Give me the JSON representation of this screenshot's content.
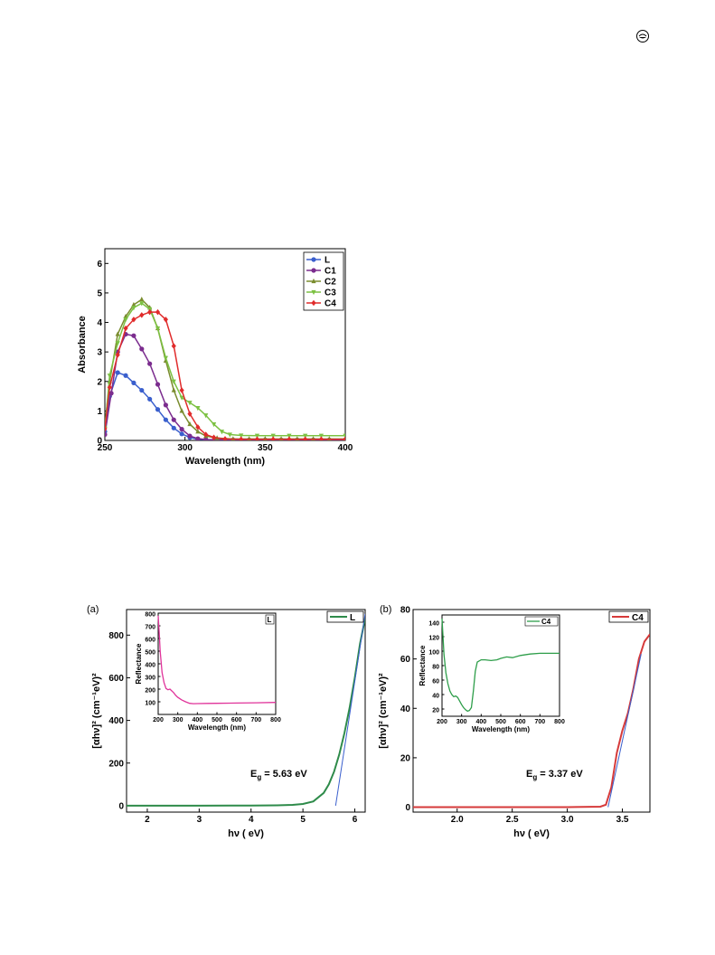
{
  "logo": {
    "icon": "publisher-logo-icon"
  },
  "chart_data": [
    {
      "id": "absorbance",
      "type": "line",
      "xlabel": "Wavelength (nm)",
      "ylabel": "Absorbance",
      "xlim": [
        250,
        400
      ],
      "ylim": [
        0,
        6.5
      ],
      "xticks": [
        250,
        300,
        350,
        400
      ],
      "yticks": [
        0,
        1,
        2,
        3,
        4,
        5,
        6
      ],
      "legend_position": "top-right",
      "series": [
        {
          "name": "L",
          "color": "#3a5fcd",
          "marker": "circle",
          "x": [
            250,
            253,
            258,
            263,
            268,
            273,
            278,
            283,
            288,
            293,
            298,
            303,
            308,
            313,
            320,
            330,
            340,
            350,
            360,
            370,
            380,
            390,
            400
          ],
          "y": [
            0.3,
            1.5,
            2.3,
            2.2,
            1.95,
            1.7,
            1.4,
            1.05,
            0.7,
            0.42,
            0.22,
            0.1,
            0.04,
            0.02,
            0.01,
            0.01,
            0.01,
            0.01,
            0.01,
            0.01,
            0.01,
            0.01,
            0.01
          ]
        },
        {
          "name": "C1",
          "color": "#7b2c8e",
          "marker": "circle",
          "x": [
            250,
            254,
            258,
            263,
            268,
            273,
            278,
            283,
            288,
            293,
            298,
            303,
            308,
            313,
            320,
            330,
            340,
            350,
            360,
            370,
            380,
            390,
            400
          ],
          "y": [
            0.2,
            1.6,
            3.0,
            3.6,
            3.55,
            3.1,
            2.6,
            1.9,
            1.2,
            0.7,
            0.38,
            0.15,
            0.06,
            0.03,
            0.02,
            0.02,
            0.02,
            0.02,
            0.02,
            0.02,
            0.02,
            0.02,
            0.02
          ]
        },
        {
          "name": "C2",
          "color": "#7a8c2e",
          "marker": "triangle-up",
          "x": [
            250,
            253,
            258,
            263,
            268,
            273,
            278,
            283,
            288,
            293,
            298,
            303,
            308,
            313,
            320,
            330,
            340,
            350,
            360,
            370,
            380,
            390,
            400
          ],
          "y": [
            0.5,
            2.0,
            3.6,
            4.2,
            4.6,
            4.78,
            4.5,
            3.8,
            2.7,
            1.7,
            1.0,
            0.55,
            0.3,
            0.15,
            0.08,
            0.05,
            0.05,
            0.05,
            0.05,
            0.05,
            0.05,
            0.05,
            0.05
          ]
        },
        {
          "name": "C3",
          "color": "#7cc142",
          "marker": "triangle-down",
          "x": [
            250,
            253,
            258,
            263,
            268,
            273,
            278,
            283,
            288,
            293,
            298,
            303,
            308,
            313,
            318,
            323,
            328,
            335,
            345,
            355,
            365,
            375,
            385,
            400
          ],
          "y": [
            0.4,
            2.2,
            3.3,
            4.1,
            4.5,
            4.65,
            4.45,
            3.8,
            2.8,
            2.0,
            1.45,
            1.28,
            1.1,
            0.85,
            0.55,
            0.3,
            0.2,
            0.17,
            0.16,
            0.16,
            0.16,
            0.16,
            0.16,
            0.16
          ]
        },
        {
          "name": "C4",
          "color": "#e02b2b",
          "marker": "diamond",
          "x": [
            250,
            253,
            258,
            263,
            268,
            273,
            278,
            283,
            288,
            293,
            298,
            303,
            308,
            313,
            318,
            325,
            335,
            345,
            355,
            365,
            375,
            385,
            400
          ],
          "y": [
            0.4,
            1.8,
            2.9,
            3.8,
            4.1,
            4.25,
            4.35,
            4.35,
            4.1,
            3.2,
            1.7,
            0.9,
            0.45,
            0.2,
            0.1,
            0.05,
            0.04,
            0.04,
            0.04,
            0.04,
            0.04,
            0.04,
            0.04
          ]
        }
      ]
    },
    {
      "id": "tauc-L",
      "panel_label": "(a)",
      "type": "line",
      "xlabel": "hν ( eV)",
      "ylabel": "[αhν]² (cm⁻¹eV)²",
      "xlim": [
        1.6,
        6.2
      ],
      "ylim": [
        -30,
        920
      ],
      "xticks": [
        2,
        3,
        4,
        5,
        6
      ],
      "yticks": [
        0,
        200,
        400,
        600,
        800
      ],
      "legend_position": "top-right",
      "annotation": {
        "text": "Eg = 5.63 eV",
        "main": "E",
        "sub": "g",
        "rest": " = 5.63 eV"
      },
      "series": [
        {
          "name": "L",
          "color": "#2e8b4a",
          "x": [
            1.6,
            3.0,
            4.0,
            4.5,
            4.8,
            5.0,
            5.2,
            5.4,
            5.5,
            5.6,
            5.7,
            5.8,
            5.9,
            6.0,
            6.1,
            6.2
          ],
          "y": [
            0,
            0,
            1,
            2,
            4,
            8,
            20,
            60,
            100,
            160,
            240,
            340,
            460,
            600,
            760,
            880
          ]
        },
        {
          "name": "fit",
          "color": "#3a5fcd",
          "x": [
            5.63,
            6.2
          ],
          "y": [
            0,
            900
          ]
        }
      ],
      "inset": {
        "legend": "L",
        "xlabel": "Wavelength (nm)",
        "ylabel": "Reflectance",
        "xlim": [
          200,
          800
        ],
        "ylim": [
          0,
          800
        ],
        "xticks": [
          200,
          300,
          400,
          500,
          600,
          700,
          800
        ],
        "yticks": [
          100,
          200,
          300,
          400,
          500,
          600,
          700,
          800
        ],
        "series": [
          {
            "name": "reflectance",
            "color": "#e0339a",
            "x": [
              200,
              205,
              210,
              220,
              230,
              240,
              250,
              260,
              270,
              280,
              290,
              300,
              320,
              340,
              360,
              380,
              400,
              450,
              500,
              600,
              700,
              800
            ],
            "y": [
              780,
              650,
              500,
              330,
              250,
              205,
              195,
              200,
              185,
              170,
              150,
              135,
              115,
              100,
              88,
              85,
              86,
              87,
              88,
              90,
              92,
              95
            ]
          }
        ]
      }
    },
    {
      "id": "tauc-C4",
      "panel_label": "(b)",
      "type": "line",
      "xlabel": "hν ( eV)",
      "ylabel": "[αhν]² (cm⁻¹eV)²",
      "xlim": [
        1.6,
        3.75
      ],
      "ylim": [
        -2,
        80
      ],
      "xticks": [
        2.0,
        2.5,
        3.0,
        3.5
      ],
      "yticks": [
        0,
        20,
        40,
        60,
        80
      ],
      "legend_position": "top-right",
      "annotation": {
        "text": "Eg = 3.37 eV",
        "main": "E",
        "sub": "g",
        "rest": " = 3.37 eV"
      },
      "series": [
        {
          "name": "C4",
          "color": "#d63a3a",
          "x": [
            1.6,
            2.5,
            3.0,
            3.3,
            3.35,
            3.4,
            3.45,
            3.5,
            3.55,
            3.6,
            3.65,
            3.7,
            3.75
          ],
          "y": [
            0,
            0,
            0,
            0.2,
            1,
            8,
            22,
            31,
            38,
            48,
            60,
            67,
            70
          ]
        },
        {
          "name": "fit",
          "color": "#3a5fcd",
          "x": [
            3.37,
            3.67
          ],
          "y": [
            0,
            62
          ]
        }
      ],
      "inset": {
        "legend": "C4",
        "xlabel": "Wavelength (nm)",
        "ylabel": "Reflectance",
        "xlim": [
          200,
          800
        ],
        "ylim": [
          10,
          150
        ],
        "xticks": [
          200,
          300,
          400,
          500,
          600,
          700,
          800
        ],
        "yticks": [
          20,
          40,
          60,
          80,
          100,
          120,
          140
        ],
        "series": [
          {
            "name": "C4",
            "color": "#2e9e4a",
            "x": [
              200,
              205,
              210,
              220,
              230,
              240,
              250,
              260,
              270,
              280,
              290,
              300,
              310,
              320,
              330,
              340,
              350,
              360,
              370,
              380,
              400,
              420,
              450,
              480,
              500,
              530,
              560,
              600,
              650,
              700,
              750,
              800
            ],
            "y": [
              145,
              120,
              95,
              70,
              55,
              45,
              40,
              37,
              38,
              36,
              31,
              26,
              22,
              19,
              17,
              18,
              22,
              45,
              72,
              85,
              88,
              88,
              87,
              88,
              90,
              92,
              91,
              94,
              96,
              97,
              97,
              97
            ]
          }
        ]
      }
    }
  ]
}
